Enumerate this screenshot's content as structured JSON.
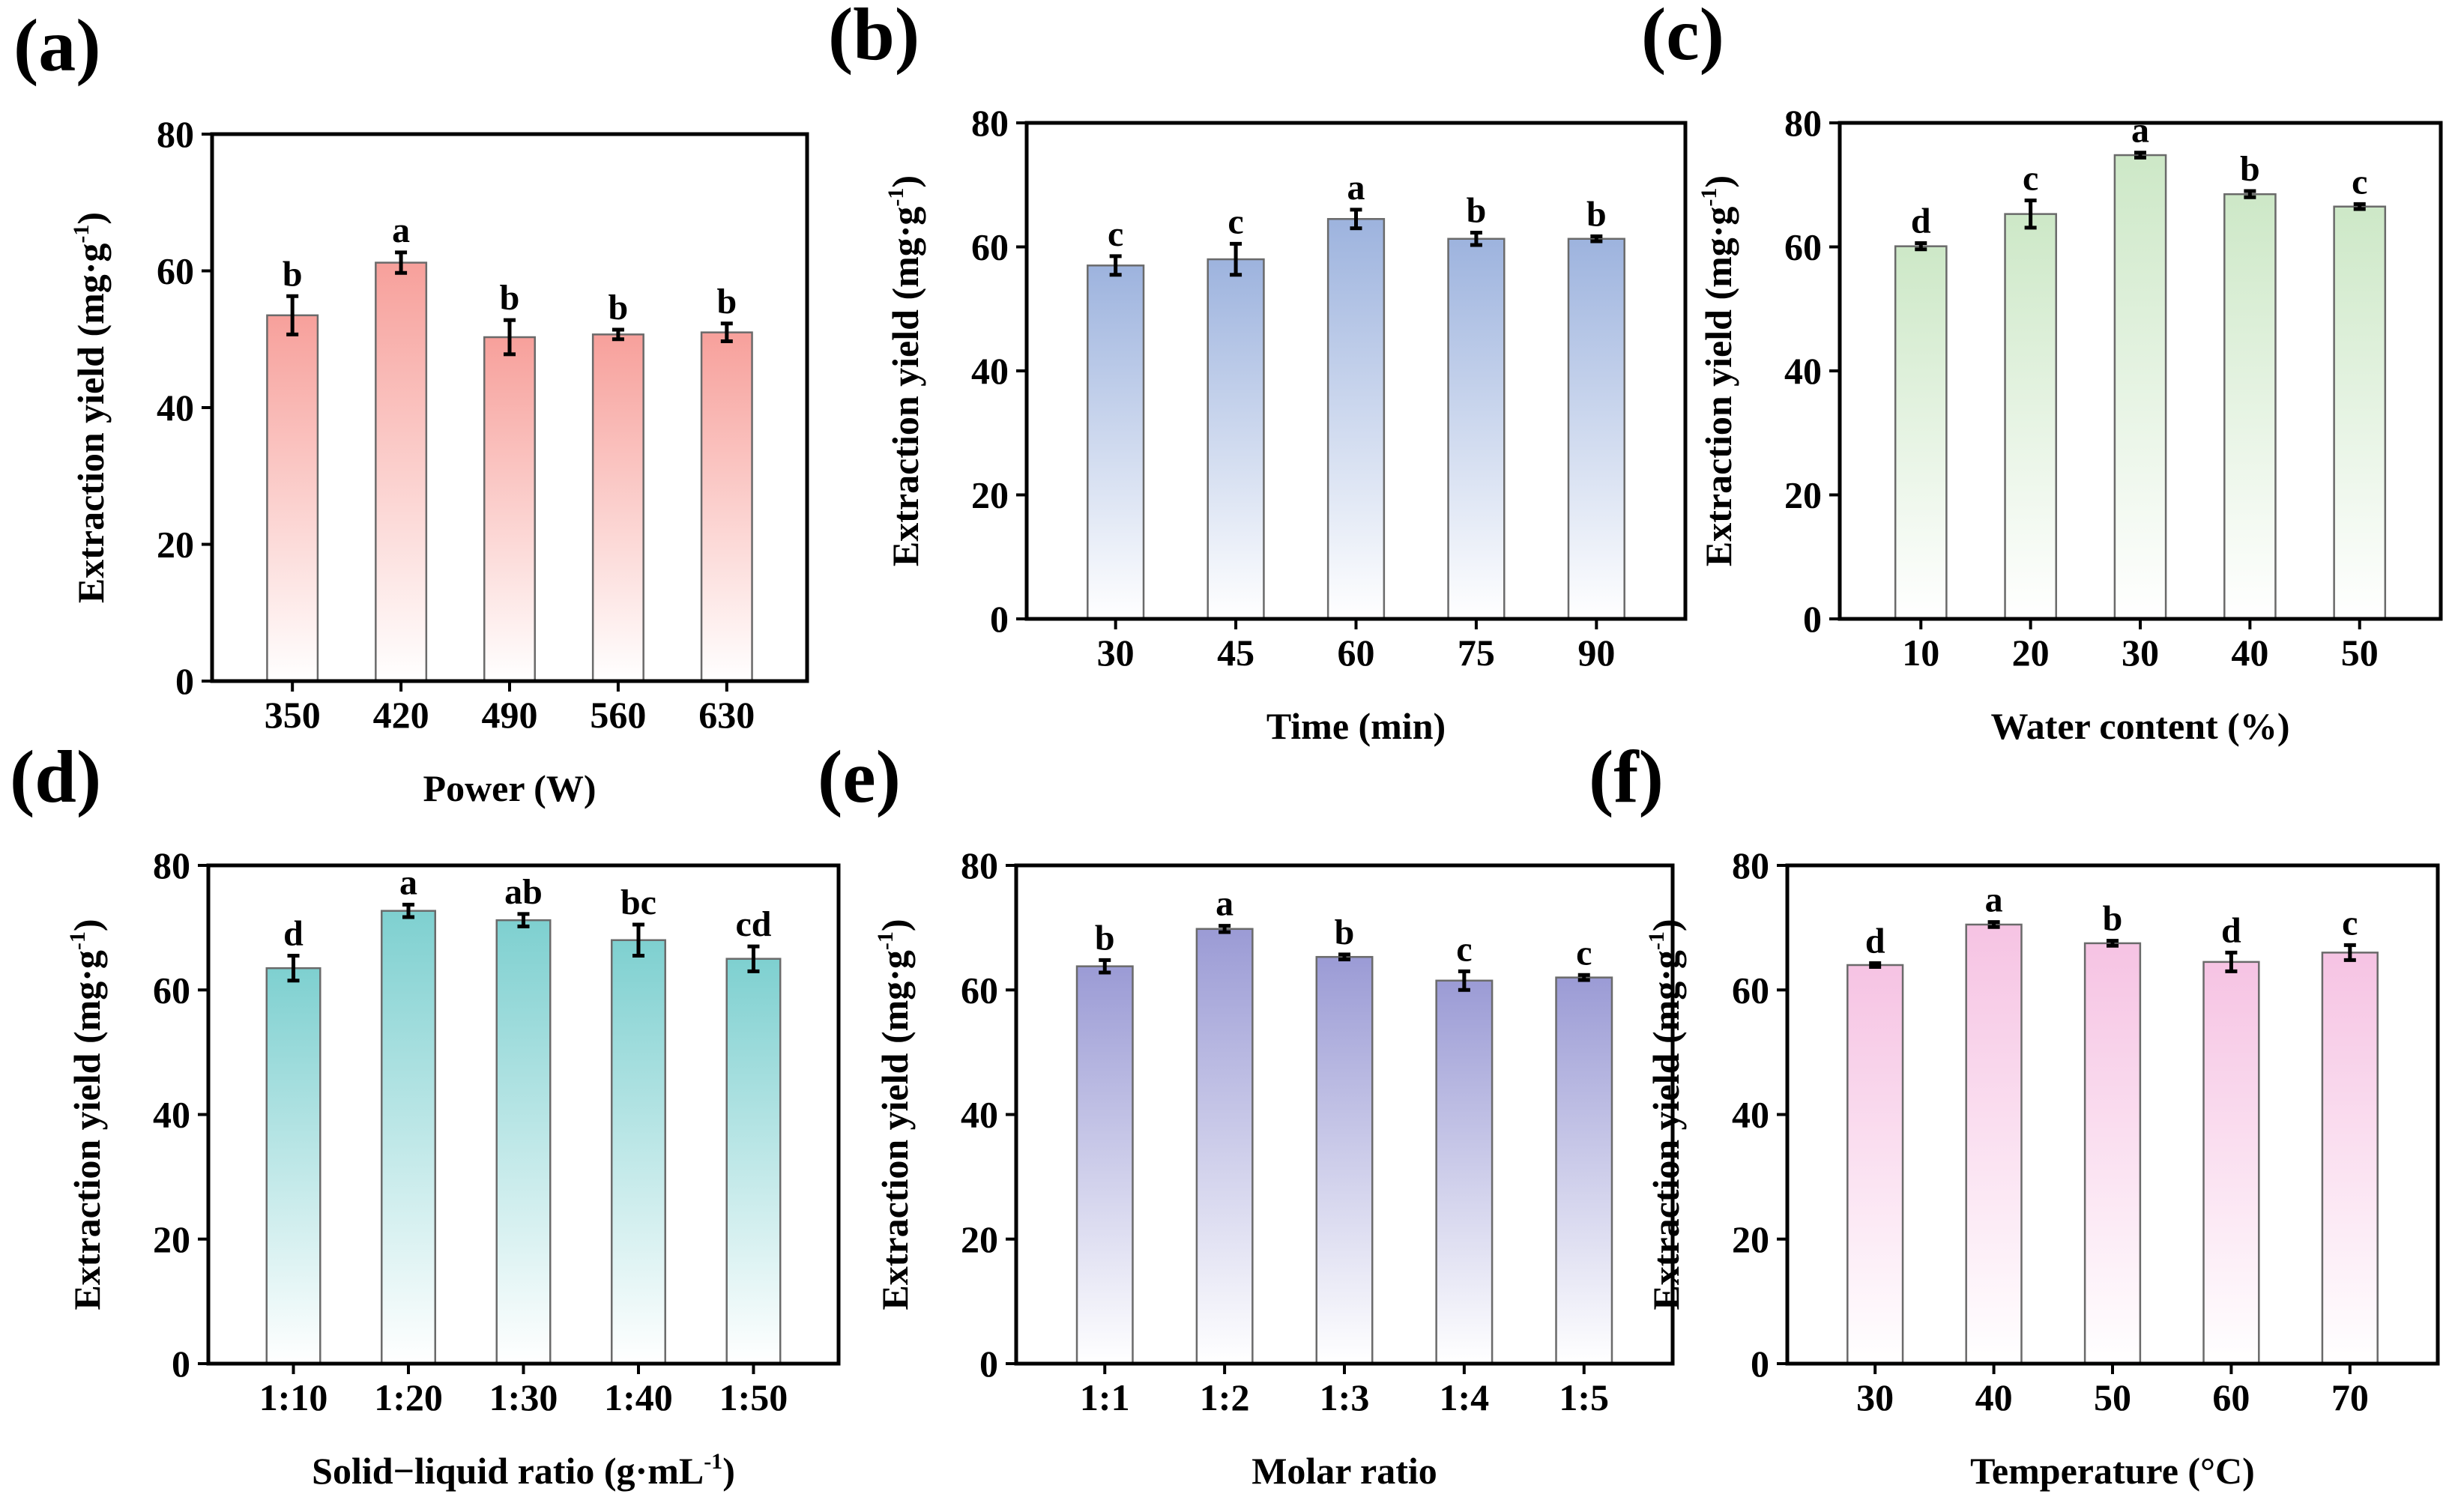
{
  "chart_data": [
    {
      "panel": "(a)",
      "type": "bar",
      "xlabel": "Power (W)",
      "ylabel": "Extraction yield (mg·g",
      "ylabel_sup": "-1",
      "ylabel_end": ")",
      "categories": [
        "350",
        "420",
        "490",
        "560",
        "630"
      ],
      "values": [
        53.5,
        61.2,
        50.3,
        50.7,
        51.0
      ],
      "errors": [
        2.8,
        1.5,
        2.5,
        0.7,
        1.3
      ],
      "letters": [
        "b",
        "a",
        "b",
        "b",
        "b"
      ],
      "ylim": [
        0,
        80
      ],
      "yticks": [
        "0",
        "20",
        "40",
        "60",
        "80"
      ],
      "color": "#f7a09b"
    },
    {
      "panel": "(b)",
      "type": "bar",
      "xlabel": "Time (min)",
      "ylabel": "Extraction yield (mg·g",
      "ylabel_sup": "-1",
      "ylabel_end": ")",
      "categories": [
        "30",
        "45",
        "60",
        "75",
        "90"
      ],
      "values": [
        57.0,
        58.0,
        64.5,
        61.3,
        61.3
      ],
      "errors": [
        1.5,
        2.5,
        1.5,
        1.0,
        0.4
      ],
      "letters": [
        "c",
        "c",
        "a",
        "b",
        "b"
      ],
      "ylim": [
        0,
        80
      ],
      "yticks": [
        "0",
        "20",
        "40",
        "60",
        "80"
      ],
      "color": "#9db3de"
    },
    {
      "panel": "(c)",
      "type": "bar",
      "xlabel": "Water content (%)",
      "ylabel": "Extraction yield (mg·g",
      "ylabel_sup": "-1",
      "ylabel_end": ")",
      "categories": [
        "10",
        "20",
        "30",
        "40",
        "50"
      ],
      "values": [
        60.1,
        65.3,
        74.8,
        68.5,
        66.5
      ],
      "errors": [
        0.5,
        2.2,
        0.4,
        0.5,
        0.4
      ],
      "letters": [
        "d",
        "c",
        "a",
        "b",
        "c"
      ],
      "ylim": [
        0,
        80
      ],
      "yticks": [
        "0",
        "20",
        "40",
        "60",
        "80"
      ],
      "color": "#cde8c7"
    },
    {
      "panel": "(d)",
      "type": "bar",
      "xlabel": "Solid−liquid ratio (g·mL",
      "xlabel_sup": "-1",
      "xlabel_end": ")",
      "ylabel": "Extraction yield (mg·g",
      "ylabel_sup": "-1",
      "ylabel_end": ")",
      "categories": [
        "1:10",
        "1:20",
        "1:30",
        "1:40",
        "1:50"
      ],
      "values": [
        63.5,
        72.7,
        71.2,
        68.0,
        65.0
      ],
      "errors": [
        2.0,
        1.0,
        1.0,
        2.5,
        2.0
      ],
      "letters": [
        "d",
        "a",
        "ab",
        "bc",
        "cd"
      ],
      "ylim": [
        0,
        80
      ],
      "yticks": [
        "0",
        "20",
        "40",
        "60",
        "80"
      ],
      "color": "#7ed0d0"
    },
    {
      "panel": "(e)",
      "type": "bar",
      "xlabel": "Molar ratio",
      "ylabel": "Extraction yield (mg·g",
      "ylabel_sup": "-1",
      "ylabel_end": ")",
      "categories": [
        "1:1",
        "1:2",
        "1:3",
        "1:4",
        "1:5"
      ],
      "values": [
        63.8,
        69.8,
        65.3,
        61.5,
        62.0
      ],
      "errors": [
        1.0,
        0.5,
        0.4,
        1.5,
        0.4
      ],
      "letters": [
        "b",
        "a",
        "b",
        "c",
        "c"
      ],
      "ylim": [
        0,
        80
      ],
      "yticks": [
        "0",
        "20",
        "40",
        "60",
        "80"
      ],
      "color": "#9b9bd5"
    },
    {
      "panel": "(f)",
      "type": "bar",
      "xlabel": "Temperature (°C)",
      "ylabel": "Extraction yield (mg·g",
      "ylabel_sup": "-1",
      "ylabel_end": ")",
      "categories": [
        "30",
        "40",
        "50",
        "60",
        "70"
      ],
      "values": [
        64.0,
        70.5,
        67.5,
        64.5,
        66.0
      ],
      "errors": [
        0.3,
        0.4,
        0.4,
        1.5,
        1.2
      ],
      "letters": [
        "d",
        "a",
        "b",
        "d",
        "c"
      ],
      "ylim": [
        0,
        80
      ],
      "yticks": [
        "0",
        "20",
        "40",
        "60",
        "80"
      ],
      "color": "#f6c3e3"
    }
  ]
}
